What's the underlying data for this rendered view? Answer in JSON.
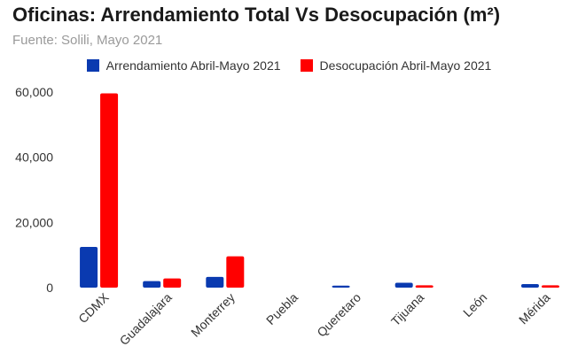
{
  "chart_data": {
    "type": "bar",
    "title": "Oficinas: Arrendamiento Total Vs Desocupación (m²)",
    "subtitle": "Fuente: Solili, Mayo 2021",
    "categories": [
      "CDMX",
      "Guadalajara",
      "Monterrey",
      "Puebla",
      "Queretaro",
      "Tijuana",
      "León",
      "Mérida"
    ],
    "series": [
      {
        "name": "Arrendamiento Abril-Mayo 2021",
        "color": "#0a3ab0",
        "values": [
          12500,
          2000,
          3300,
          0,
          600,
          1500,
          0,
          1100
        ]
      },
      {
        "name": "Desocupación Abril-Mayo 2021",
        "color": "#ff0000",
        "values": [
          59600,
          2800,
          9600,
          0,
          0,
          700,
          0,
          700
        ]
      }
    ],
    "ylim": [
      0,
      60000
    ],
    "yticks": [
      "0",
      "20,000",
      "40,000",
      "60,000"
    ],
    "grid": false,
    "legend": "top"
  }
}
